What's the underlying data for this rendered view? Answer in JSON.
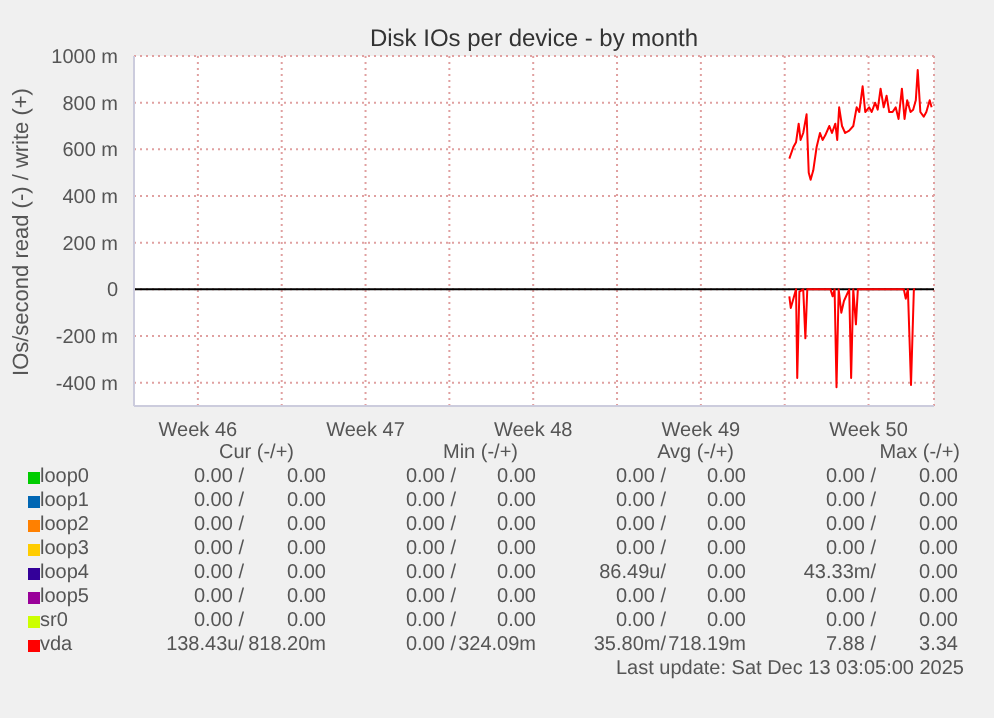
{
  "chart_data": {
    "type": "line",
    "title": "Disk IOs per device - by month",
    "ylabel": "IOs/second read (-) / write (+)",
    "xlim": [
      "2025-11-10T20:00",
      "2025-12-14T05:36"
    ],
    "ylim": [
      -500,
      1000
    ],
    "xticks": [
      {
        "value": "2025-11-13T12:00",
        "label": "Week 46"
      },
      {
        "value": "2025-11-17T00:00",
        "label": null
      },
      {
        "value": "2025-11-20T12:00",
        "label": "Week 47"
      },
      {
        "value": "2025-11-24T00:00",
        "label": null
      },
      {
        "value": "2025-11-27T12:00",
        "label": "Week 48"
      },
      {
        "value": "2025-12-01T00:00",
        "label": null
      },
      {
        "value": "2025-12-04T12:00",
        "label": "Week 49"
      },
      {
        "value": "2025-12-08T00:00",
        "label": null
      },
      {
        "value": "2025-12-11T12:00",
        "label": "Week 50"
      }
    ],
    "yticks": [
      {
        "value": 1000,
        "label": "1000 m"
      },
      {
        "value": 800,
        "label": "800 m"
      },
      {
        "value": 600,
        "label": "600 m"
      },
      {
        "value": 400,
        "label": "400 m"
      },
      {
        "value": 200,
        "label": "200 m"
      },
      0,
      {
        "value": -200,
        "label": "-200 m"
      },
      {
        "value": -400,
        "label": "-400 m"
      }
    ],
    "grid": true,
    "legend": "bottom",
    "marker": "none",
    "series": [
      {
        "name": "loop0",
        "color": "#00cc00"
      },
      {
        "name": "loop1",
        "color": "#0066b3"
      },
      {
        "name": "loop2",
        "color": "#ff8000"
      },
      {
        "name": "loop3",
        "color": "#ffcc00"
      },
      {
        "name": "loop4",
        "color": "#330099"
      },
      {
        "name": "loop5",
        "color": "#990099"
      },
      {
        "name": "sr0",
        "color": "#ccff00"
      },
      {
        "name": "vda",
        "color": "#ff0000",
        "x": [
          "2025-12-08T04:38",
          "2025-12-08T08:43",
          "2025-12-08T11:22",
          "2025-12-08T14:00",
          "2025-12-08T15:55",
          "2025-12-08T18:34",
          "2025-12-08T21:55",
          "2025-12-09T00:05",
          "2025-12-09T02:00",
          "2025-12-09T04:38",
          "2025-12-09T08:00",
          "2025-12-09T11:22",
          "2025-12-09T14:00",
          "2025-12-09T16:38",
          "2025-12-09T20:43",
          "2025-12-09T23:22",
          "2025-12-10T02:43",
          "2025-12-10T04:38",
          "2025-12-10T06:34",
          "2025-12-10T09:26",
          "2025-12-10T12:34",
          "2025-12-10T16:38",
          "2025-12-10T20:43",
          "2025-12-11T00:05",
          "2025-12-11T02:43",
          "2025-12-11T06:05",
          "2025-12-11T08:43",
          "2025-12-11T12:34",
          "2025-12-11T15:12",
          "2025-12-11T18:34",
          "2025-12-11T21:12",
          "2025-12-12T00:05",
          "2025-12-12T03:12",
          "2025-12-12T06:05",
          "2025-12-12T08:43",
          "2025-12-12T12:05",
          "2025-12-12T15:12",
          "2025-12-12T18:05",
          "2025-12-12T21:26",
          "2025-12-13T00:05",
          "2025-12-13T02:43",
          "2025-12-13T06:05",
          "2025-12-13T08:43",
          "2025-12-13T11:22",
          "2025-12-13T13:17",
          "2025-12-13T15:55",
          "2025-12-13T19:17",
          "2025-12-13T21:55",
          "2025-12-14T01:17",
          "2025-12-14T03:12"
        ],
        "values": [
          560,
          610,
          630,
          710,
          640,
          670,
          750,
          500,
          470,
          510,
          610,
          670,
          640,
          660,
          700,
          670,
          710,
          640,
          780,
          700,
          670,
          680,
          700,
          780,
          760,
          870,
          760,
          780,
          760,
          800,
          770,
          860,
          780,
          830,
          760,
          760,
          780,
          730,
          860,
          730,
          810,
          760,
          770,
          810,
          940,
          760,
          740,
          760,
          810,
          780
        ]
      },
      {
        "color": "#ff0000",
        "x": [
          "2025-12-08T04:38",
          "2025-12-08T06:05",
          "2025-12-08T08:43",
          "2025-12-08T11:22",
          "2025-12-08T12:34",
          "2025-12-08T14:43",
          "2025-12-08T18:34",
          "2025-12-08T20:43",
          "2025-12-08T22:38",
          "2025-12-09T02:00",
          "2025-12-09T21:55",
          "2025-12-10T00:05",
          "2025-12-10T02:00",
          "2025-12-10T03:55",
          "2025-12-10T06:05",
          "2025-12-10T08:43",
          "2025-12-10T11:22",
          "2025-12-10T16:38",
          "2025-12-10T18:34",
          "2025-12-10T20:43",
          "2025-12-10T23:22",
          "2025-12-11T01:17",
          "2025-12-12T23:22",
          "2025-12-13T01:17",
          "2025-12-13T03:26",
          "2025-12-13T06:34",
          "2025-12-13T09:26",
          "2025-12-13T10:38"
        ],
        "values": [
          -30,
          -80,
          -40,
          0,
          -380,
          -10,
          0,
          -210,
          0,
          0,
          0,
          -30,
          0,
          -420,
          0,
          -100,
          -50,
          0,
          -380,
          0,
          -150,
          0,
          0,
          -40,
          0,
          -410,
          0,
          0
        ]
      }
    ],
    "annotations": [
      "Cur (-/+)",
      "Min (-/+)",
      "Avg (-/+)",
      "Max (-/+)",
      "0.00 /",
      "0.00",
      "0.00 /",
      "0.00",
      "0.00 /",
      "0.00",
      "0.00 /",
      "0.00",
      "0.00 /",
      "0.00",
      "0.00 /",
      "0.00",
      "0.00 /",
      "0.00",
      "0.00 /",
      "0.00",
      "0.00 /",
      "0.00",
      "0.00 /",
      "0.00",
      "0.00 /",
      "0.00",
      "0.00 /",
      "0.00",
      "0.00 /",
      "0.00",
      "0.00 /",
      "0.00",
      "0.00 /",
      "0.00",
      "0.00 /",
      "0.00",
      "0.00 /",
      "0.00",
      "0.00 /",
      "0.00",
      "86.49u/",
      "0.00",
      "43.33m/",
      "0.00",
      "0.00 /",
      "0.00",
      "0.00 /",
      "0.00",
      "0.00 /",
      "0.00",
      "0.00 /",
      "0.00",
      "0.00 /",
      "0.00",
      "0.00 /",
      "0.00",
      "0.00 /",
      "0.00",
      "0.00 /",
      "0.00",
      "138.43u/",
      "818.20m",
      "0.00 /",
      "324.09m",
      "35.80m/",
      "718.19m",
      "7.88 /",
      "3.34",
      "Last update: Sat Dec 13 03:05:00 2025"
    ]
  }
}
